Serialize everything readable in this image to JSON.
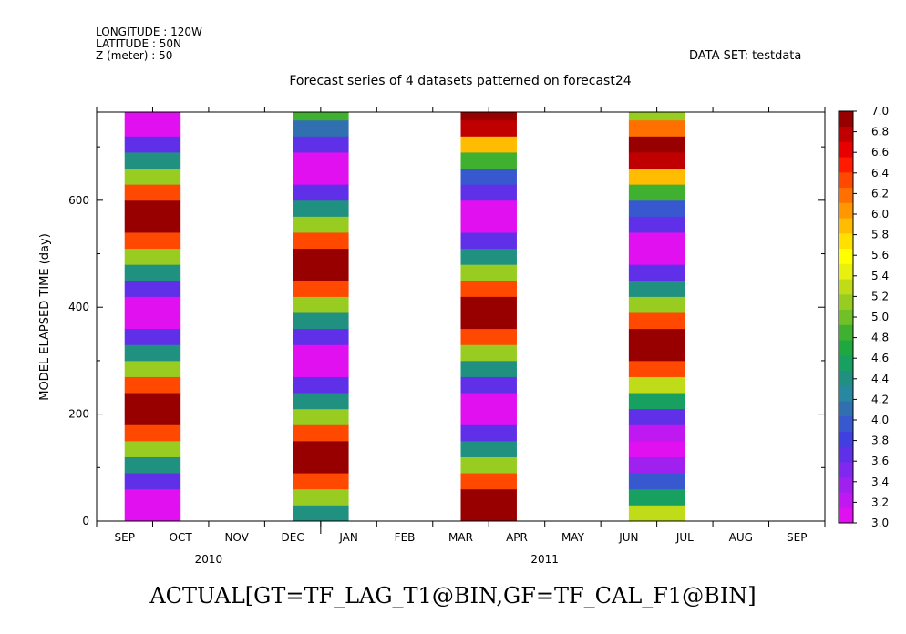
{
  "header": {
    "longitude": "LONGITUDE : 120W",
    "latitude": "LATITUDE : 50N",
    "z": "Z (meter) : 50",
    "dataset": "DATA SET: testdata"
  },
  "footer": "ACTUAL[GT=TF_LAG_T1@BIN,GF=TF_CAL_F1@BIN]",
  "chart_data": {
    "type": "heatmap",
    "title": "Forecast series of 4 datasets patterned on forecast24",
    "xlabel": "",
    "ylabel": "MODEL ELAPSED TIME (day)",
    "ylim": [
      0,
      765
    ],
    "y_ticks": [
      0,
      200,
      400,
      600
    ],
    "month_ticks": [
      "SEP",
      "OCT",
      "NOV",
      "DEC",
      "JAN",
      "FEB",
      "MAR",
      "APR",
      "MAY",
      "JUN",
      "JUL",
      "AUG",
      "SEP"
    ],
    "year_labels": [
      {
        "label": "2010",
        "at": "OCT"
      },
      {
        "label": "2011",
        "at": "APR"
      }
    ],
    "colorbar": {
      "min": 3.0,
      "max": 7.0,
      "step": 0.2,
      "tick_labels": [
        "3.0",
        "3.2",
        "3.4",
        "3.6",
        "3.8",
        "4.0",
        "4.2",
        "4.4",
        "4.6",
        "4.8",
        "5.0",
        "5.2",
        "5.4",
        "5.6",
        "5.8",
        "6.0",
        "6.2",
        "6.4",
        "6.6",
        "6.8",
        "7.0"
      ],
      "colors": [
        "#e010f0",
        "#c018f0",
        "#a020f0",
        "#8028f0",
        "#6030e8",
        "#4040e0",
        "#3858d0",
        "#3070b0",
        "#2888a0",
        "#209080",
        "#18a060",
        "#20a840",
        "#40b030",
        "#70c028",
        "#98cc20",
        "#c0dc18",
        "#e8f010",
        "#ffff00",
        "#ffe000",
        "#ffbc00",
        "#ff9800",
        "#ff7000",
        "#ff4800",
        "#ff1a00",
        "#e80000",
        "#c00000",
        "#980000"
      ]
    },
    "band_days": 30,
    "series": [
      {
        "name": "SEP 2010",
        "month_offset": 0.5,
        "values": [
          3.1,
          3.1,
          3.6,
          4.4,
          5.2,
          6.4,
          7.0,
          7.0,
          6.4,
          5.2,
          4.4,
          3.6,
          3.1,
          3.1,
          3.6,
          4.4,
          5.2,
          6.4,
          7.0,
          7.0,
          6.4,
          5.2,
          4.4,
          3.6,
          3.1,
          3.1
        ]
      },
      {
        "name": "DEC 2010",
        "month_offset": 3.5,
        "values": [
          4.4,
          5.2,
          6.4,
          7.0,
          7.0,
          6.4,
          5.2,
          4.4,
          3.6,
          3.1,
          3.1,
          3.6,
          4.4,
          5.2,
          6.4,
          7.0,
          7.0,
          6.4,
          5.2,
          4.4,
          3.6,
          3.1,
          3.1,
          3.6,
          4.1,
          4.8
        ]
      },
      {
        "name": "MAR 2011",
        "month_offset": 6.5,
        "values": [
          7.0,
          7.0,
          6.4,
          5.2,
          4.4,
          3.6,
          3.1,
          3.1,
          3.6,
          4.4,
          5.2,
          6.4,
          7.0,
          7.0,
          6.4,
          5.2,
          4.4,
          3.6,
          3.1,
          3.1,
          3.6,
          4.0,
          4.8,
          5.9,
          6.8,
          7.0
        ]
      },
      {
        "name": "JUN 2011",
        "month_offset": 9.5,
        "values": [
          5.3,
          4.6,
          3.9,
          3.4,
          3.1,
          3.2,
          3.7,
          4.5,
          5.3,
          6.4,
          7.0,
          7.0,
          6.4,
          5.2,
          4.4,
          3.6,
          3.1,
          3.1,
          3.6,
          4.0,
          4.8,
          5.9,
          6.8,
          7.0,
          6.2,
          5.2
        ]
      }
    ]
  }
}
